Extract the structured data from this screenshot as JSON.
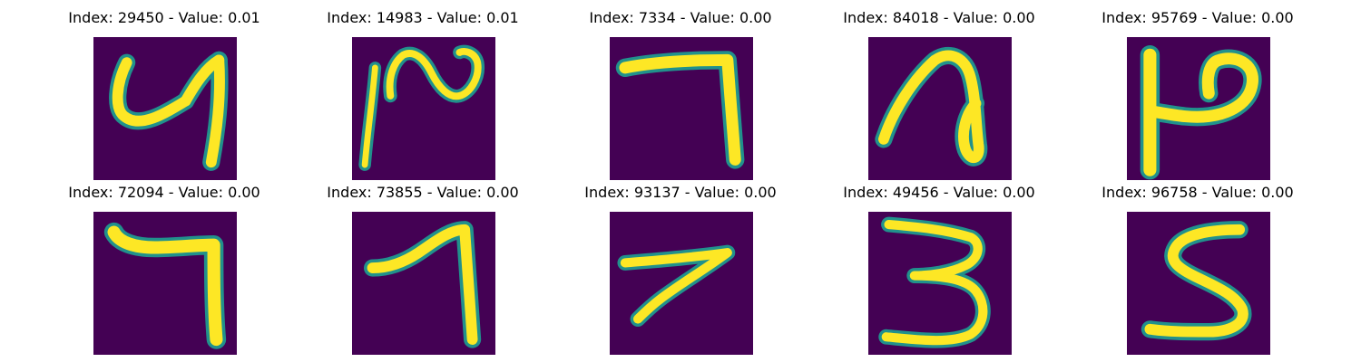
{
  "figure": {
    "background_color": "#ffffff",
    "colormap": "viridis",
    "digit_background": "#440154",
    "digit_stroke_outer": "#21918c",
    "digit_stroke_inner": "#fde725",
    "panels": [
      {
        "title": "Index: 29450 - Value: 0.01",
        "depicted_digit": "4"
      },
      {
        "title": "Index: 14983 - Value: 0.01",
        "depicted_digit": "handwritten stroke"
      },
      {
        "title": "Index: 7334 - Value: 0.00",
        "depicted_digit": "7"
      },
      {
        "title": "Index: 84018 - Value: 0.00",
        "depicted_digit": "handwritten stroke"
      },
      {
        "title": "Index: 95769 - Value: 0.00",
        "depicted_digit": "handwritten stroke"
      },
      {
        "title": "Index: 72094 - Value: 0.00",
        "depicted_digit": "7"
      },
      {
        "title": "Index: 73855 - Value: 0.00",
        "depicted_digit": "1"
      },
      {
        "title": "Index: 93137 - Value: 0.00",
        "depicted_digit": "7"
      },
      {
        "title": "Index: 49456 - Value: 0.00",
        "depicted_digit": "3"
      },
      {
        "title": "Index: 96758 - Value: 0.00",
        "depicted_digit": "5"
      }
    ]
  }
}
